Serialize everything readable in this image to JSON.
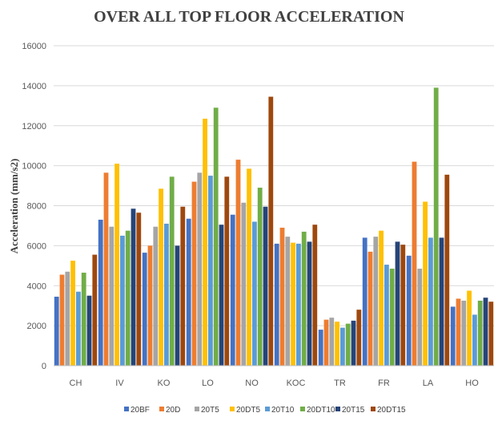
{
  "chart_data": {
    "type": "bar",
    "title": "OVER ALL TOP FLOOR ACCELERATION",
    "ylabel": "Acceleration (mm/s2)",
    "xlabel": "",
    "ylim": [
      0,
      16000
    ],
    "yticks": [
      0,
      2000,
      4000,
      6000,
      8000,
      10000,
      12000,
      14000,
      16000
    ],
    "grid": true,
    "legend_position": "bottom",
    "categories": [
      "CH",
      "IV",
      "KO",
      "LO",
      "NO",
      "KOC",
      "TR",
      "FR",
      "LA",
      "HO"
    ],
    "series": [
      {
        "name": "20BF",
        "color": "#4472C4",
        "values": [
          3450,
          7300,
          5650,
          7350,
          7550,
          6100,
          1800,
          6400,
          5500,
          2950
        ]
      },
      {
        "name": "20D",
        "color": "#ED7D31",
        "values": [
          4550,
          9650,
          6000,
          9200,
          10300,
          6900,
          2300,
          5700,
          10200,
          3350
        ]
      },
      {
        "name": "20T5",
        "color": "#A5A5A5",
        "values": [
          4700,
          6950,
          6950,
          9650,
          8150,
          6450,
          2400,
          6450,
          4850,
          3250
        ]
      },
      {
        "name": "20DT5",
        "color": "#FFC000",
        "values": [
          5250,
          10100,
          8850,
          12350,
          9850,
          6150,
          2200,
          6750,
          8200,
          3750
        ]
      },
      {
        "name": "20T10",
        "color": "#5B9BD5",
        "values": [
          3700,
          6500,
          7100,
          9500,
          7200,
          6100,
          1900,
          5050,
          6400,
          2550
        ]
      },
      {
        "name": "20DT10",
        "color": "#70AD47",
        "values": [
          4650,
          6750,
          9450,
          12900,
          8900,
          6700,
          2100,
          4850,
          13900,
          3250
        ]
      },
      {
        "name": "20T15",
        "color": "#264478",
        "values": [
          3500,
          7850,
          6000,
          7050,
          7950,
          6200,
          2250,
          6200,
          6400,
          3400
        ]
      },
      {
        "name": "20DT15",
        "color": "#9E480E",
        "values": [
          5550,
          7650,
          7950,
          9450,
          13450,
          7050,
          2800,
          6050,
          9550,
          3200
        ]
      }
    ]
  }
}
